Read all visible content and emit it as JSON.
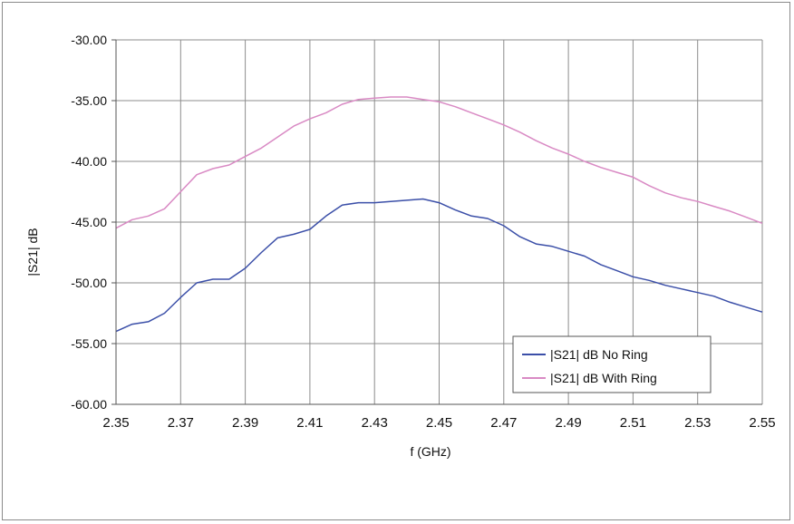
{
  "chart_data": {
    "type": "line",
    "title": "",
    "xlabel": "f (GHz)",
    "ylabel": "|S21| dB",
    "xlim": [
      2.35,
      2.55
    ],
    "ylim": [
      -60,
      -30
    ],
    "x_ticks": [
      "2.35",
      "2.37",
      "2.39",
      "2.41",
      "2.43",
      "2.45",
      "2.47",
      "2.49",
      "2.51",
      "2.53",
      "2.55"
    ],
    "y_ticks": [
      "-30.00",
      "-35.00",
      "-40.00",
      "-45.00",
      "-50.00",
      "-55.00",
      "-60.00"
    ],
    "grid": true,
    "legend_position": "bottom-right",
    "series": [
      {
        "name": "|S21| dB No Ring",
        "color": "#3b4fa8",
        "x": [
          2.35,
          2.355,
          2.36,
          2.365,
          2.37,
          2.375,
          2.38,
          2.385,
          2.39,
          2.395,
          2.4,
          2.405,
          2.41,
          2.415,
          2.42,
          2.425,
          2.43,
          2.435,
          2.44,
          2.445,
          2.45,
          2.455,
          2.46,
          2.465,
          2.47,
          2.475,
          2.48,
          2.485,
          2.49,
          2.495,
          2.5,
          2.505,
          2.51,
          2.515,
          2.52,
          2.525,
          2.53,
          2.535,
          2.54,
          2.545,
          2.55
        ],
        "y": [
          -54.0,
          -53.4,
          -53.2,
          -52.5,
          -51.2,
          -50.0,
          -49.7,
          -49.7,
          -48.8,
          -47.5,
          -46.3,
          -46.0,
          -45.6,
          -44.5,
          -43.6,
          -43.4,
          -43.4,
          -43.3,
          -43.2,
          -43.1,
          -43.4,
          -44.0,
          -44.5,
          -44.7,
          -45.3,
          -46.2,
          -46.8,
          -47.0,
          -47.4,
          -47.8,
          -48.5,
          -49.0,
          -49.5,
          -49.8,
          -50.2,
          -50.5,
          -50.8,
          -51.1,
          -51.6,
          -52.0,
          -52.4
        ]
      },
      {
        "name": "|S21| dB With Ring",
        "color": "#d98ac4",
        "x": [
          2.35,
          2.355,
          2.36,
          2.365,
          2.37,
          2.375,
          2.38,
          2.385,
          2.39,
          2.395,
          2.4,
          2.405,
          2.41,
          2.415,
          2.42,
          2.425,
          2.43,
          2.435,
          2.44,
          2.445,
          2.45,
          2.455,
          2.46,
          2.465,
          2.47,
          2.475,
          2.48,
          2.485,
          2.49,
          2.495,
          2.5,
          2.505,
          2.51,
          2.515,
          2.52,
          2.525,
          2.53,
          2.535,
          2.54,
          2.545,
          2.55
        ],
        "y": [
          -45.5,
          -44.8,
          -44.5,
          -43.9,
          -42.5,
          -41.1,
          -40.6,
          -40.3,
          -39.6,
          -38.9,
          -38.0,
          -37.1,
          -36.5,
          -36.0,
          -35.3,
          -34.9,
          -34.8,
          -34.7,
          -34.7,
          -34.9,
          -35.1,
          -35.5,
          -36.0,
          -36.5,
          -37.0,
          -37.6,
          -38.3,
          -38.9,
          -39.4,
          -40.0,
          -40.5,
          -40.9,
          -41.3,
          -42.0,
          -42.6,
          -43.0,
          -43.3,
          -43.7,
          -44.1,
          -44.6,
          -45.1
        ]
      }
    ]
  }
}
